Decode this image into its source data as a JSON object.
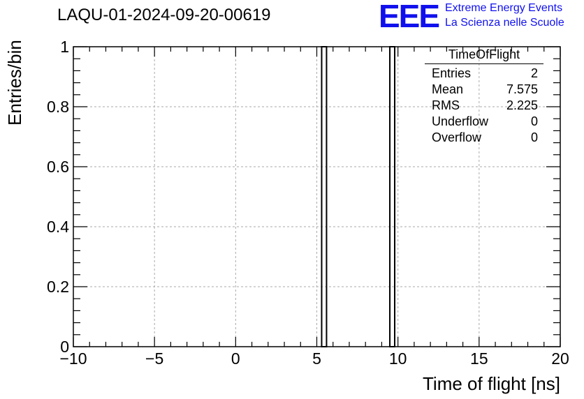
{
  "header": {
    "title": "LAQU-01-2024-09-20-00619",
    "logo_text": "EEE",
    "logo_line1": "Extreme Energy Events",
    "logo_line2": "La Scienza nelle Scuole"
  },
  "stats_box": {
    "name": "TimeOfFlight",
    "rows": [
      {
        "label": "Entries",
        "value": "2"
      },
      {
        "label": "Mean",
        "value": "7.575"
      },
      {
        "label": "RMS",
        "value": "2.225"
      },
      {
        "label": "Underflow",
        "value": "0"
      },
      {
        "label": "Overflow",
        "value": "0"
      }
    ]
  },
  "colors": {
    "logo": "#1010ee",
    "bars": "#000000",
    "grid": "#aaaaaa"
  },
  "chart_data": {
    "type": "bar",
    "title": "LAQU-01-2024-09-20-00619",
    "xlabel": "Time of flight [ns]",
    "ylabel": "Entries/bin",
    "xlim": [
      -10,
      20
    ],
    "ylim": [
      0,
      1.0
    ],
    "grid": true,
    "x_ticks": [
      -10,
      -5,
      0,
      5,
      10,
      15,
      20
    ],
    "x_tick_labels": [
      "−10",
      "−5",
      "0",
      "5",
      "10",
      "15",
      "20"
    ],
    "y_ticks": [
      0,
      0.2,
      0.4,
      0.6,
      0.8,
      1
    ],
    "y_tick_labels": [
      "0",
      "0.2",
      "0.4",
      "0.6",
      "0.8",
      "1"
    ],
    "bins": [
      {
        "x_low": 5.3,
        "x_high": 5.6,
        "value": 1
      },
      {
        "x_low": 9.5,
        "x_high": 9.8,
        "value": 1
      }
    ]
  }
}
